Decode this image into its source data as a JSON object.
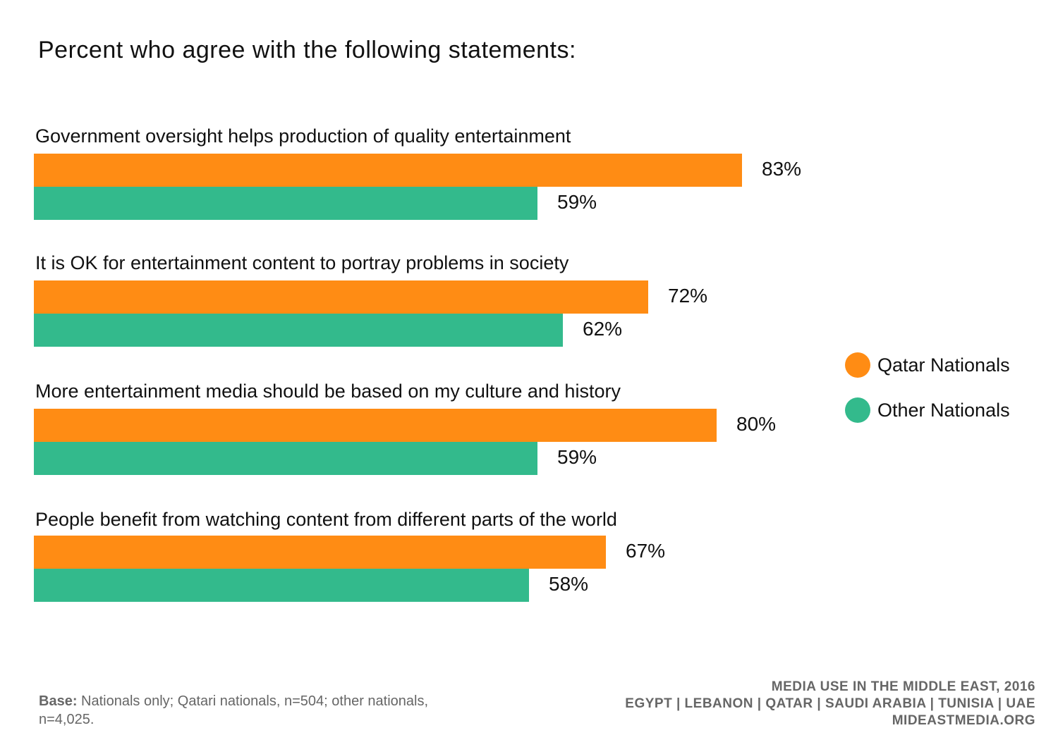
{
  "chart_data": {
    "type": "bar",
    "orientation": "horizontal",
    "title": "Percent who agree with the following statements:",
    "categories": [
      "Government oversight helps production of quality entertainment",
      "It is OK for entertainment content to portray problems in society",
      "More entertainment media should be based on my culture and history",
      "People benefit from watching content from different parts of the world"
    ],
    "series": [
      {
        "name": "Qatar Nationals",
        "color": "#FF8C14",
        "values": [
          83,
          72,
          80,
          67
        ],
        "labels": [
          "83%",
          "72%",
          "80%",
          "67%"
        ]
      },
      {
        "name": "Other Nationals",
        "color": "#33BA8C",
        "values": [
          59,
          62,
          59,
          58
        ],
        "labels": [
          "59%",
          "62%",
          "59%",
          "58%"
        ]
      }
    ],
    "xlim": [
      0,
      100
    ],
    "grid": false,
    "legend": "right"
  },
  "footer": {
    "base_bold": "Base:",
    "base_text": "Nationals only; Qatari nationals, n=504; other nationals, n=4,025.",
    "credit_line1": "MEDIA USE IN THE MIDDLE EAST, 2016",
    "credit_line2": "EGYPT | LEBANON | QATAR | SAUDI ARABIA | TUNISIA | UAE",
    "credit_line3": "MIDEASTMEDIA.ORG"
  }
}
